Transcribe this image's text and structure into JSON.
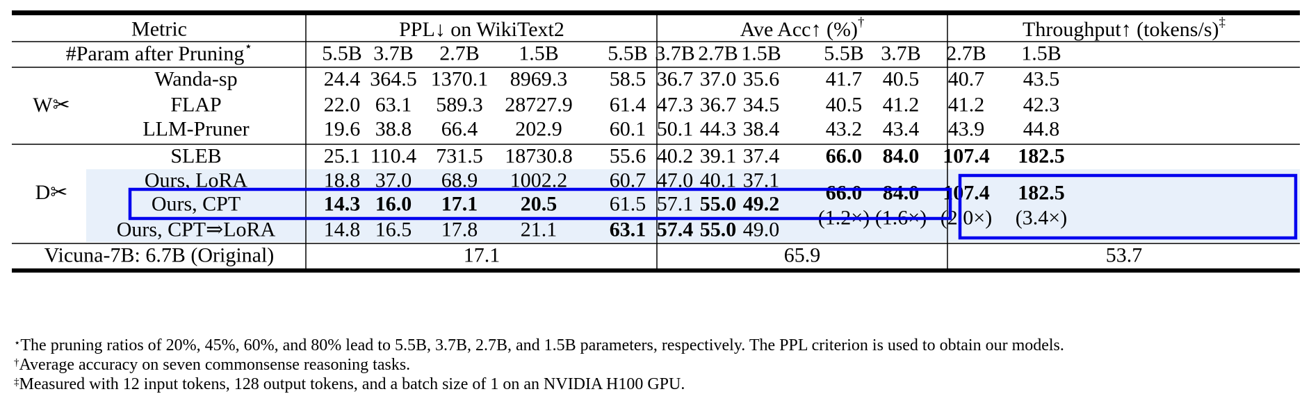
{
  "table": {
    "corner_label": "Metric",
    "groups": [
      {
        "title": "PPL↓ on WikiText2",
        "mark": ""
      },
      {
        "title": "Ave Acc↑ (%)",
        "mark": "†"
      },
      {
        "title": "Throughput↑ (tokens/s)",
        "mark": "‡"
      }
    ],
    "param_row": {
      "label": "#Param after Pruning",
      "mark": "⋆",
      "sizes": [
        "5.5B",
        "3.7B",
        "2.7B",
        "1.5B",
        "5.5B",
        "3.7B",
        "2.7B",
        "1.5B",
        "5.5B",
        "3.7B",
        "2.7B",
        "1.5B"
      ]
    },
    "sections": [
      {
        "label": "W",
        "symbol": "✂",
        "rows": [
          {
            "method": "Wanda-sp",
            "values": [
              "24.4",
              "364.5",
              "1370.1",
              "8969.3",
              "58.5",
              "36.7",
              "37.0",
              "35.6",
              "41.7",
              "40.5",
              "40.7",
              "43.5"
            ],
            "bold": []
          },
          {
            "method": "FLAP",
            "values": [
              "22.0",
              "63.1",
              "589.3",
              "28727.9",
              "61.4",
              "47.3",
              "36.7",
              "34.5",
              "40.5",
              "41.2",
              "41.2",
              "42.3"
            ],
            "bold": []
          },
          {
            "method": "LLM-Pruner",
            "values": [
              "19.6",
              "38.8",
              "66.4",
              "202.9",
              "60.1",
              "50.1",
              "44.3",
              "38.4",
              "43.2",
              "43.4",
              "43.9",
              "44.8"
            ],
            "bold": []
          }
        ]
      },
      {
        "label": "D",
        "symbol": "✂",
        "rows": [
          {
            "method": "SLEB",
            "values": [
              "25.1",
              "110.4",
              "731.5",
              "18730.8",
              "55.6",
              "40.2",
              "39.1",
              "37.4",
              "66.0",
              "84.0",
              "107.4",
              "182.5"
            ],
            "bold": [
              8,
              9,
              10,
              11
            ]
          },
          {
            "method": "Ours, LoRA",
            "values": [
              "18.8",
              "37.0",
              "68.9",
              "1002.2",
              "60.7",
              "47.0",
              "40.1",
              "37.1"
            ],
            "bold": [],
            "shaded": true
          },
          {
            "method": "Ours, CPT",
            "values": [
              "14.3",
              "16.0",
              "17.1",
              "20.5",
              "61.5",
              "57.1",
              "55.0",
              "49.2"
            ],
            "bold": [
              0,
              1,
              2,
              3,
              6,
              7
            ],
            "shaded": true,
            "boxed": true
          },
          {
            "method": "Ours, CPT⇒LoRA",
            "values": [
              "14.8",
              "16.5",
              "17.8",
              "21.1",
              "63.1",
              "57.4",
              "55.0",
              "49.0"
            ],
            "bold": [
              4,
              5,
              6
            ],
            "shaded": true
          }
        ],
        "ours_throughput": {
          "values": [
            "66.0",
            "84.0",
            "107.4",
            "182.5"
          ],
          "speedups": [
            "(1.2×)",
            "(1.6×)",
            "(2.0×)",
            "(3.4×)"
          ]
        }
      }
    ],
    "baseline": {
      "label": "Vicuna-7B: 6.7B (Original)",
      "values": [
        "17.1",
        "65.9",
        "53.7"
      ]
    },
    "colors": {
      "highlight_box": "#0000ee",
      "shade": "#e8f0fa",
      "rule": "#000000"
    }
  },
  "footnotes": [
    {
      "mark": "⋆",
      "text": "The pruning ratios of 20%, 45%, 60%, and 80% lead to 5.5B, 3.7B, 2.7B, and 1.5B parameters, respectively. The PPL criterion is used to obtain our models."
    },
    {
      "mark": "†",
      "text": "Average accuracy on seven commonsense reasoning tasks."
    },
    {
      "mark": "‡",
      "text": "Measured with 12 input tokens, 128 output tokens, and a batch size of 1 on an NVIDIA H100 GPU."
    }
  ]
}
